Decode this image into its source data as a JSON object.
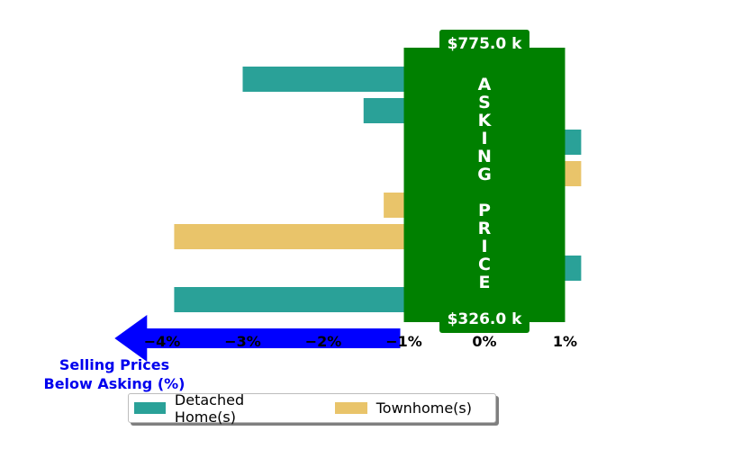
{
  "chart_data": {
    "type": "bar",
    "orientation": "horizontal",
    "xlim": [
      -4.6,
      1.3
    ],
    "x_ticks": [
      -4,
      -3,
      -2,
      -1,
      0,
      1
    ],
    "x_tick_labels": [
      "−4%",
      "−3%",
      "−2%",
      "−1%",
      "0%",
      "1%"
    ],
    "grid": false,
    "legend_position": "bottom-center",
    "colors": {
      "detached": "#2aa198",
      "townhome": "#e9c46a",
      "asking_box": "#008000",
      "arrow": "#0000ff",
      "below_label": "#0000ee"
    },
    "series": [
      {
        "name": "Detached Home(s)",
        "key": "detached"
      },
      {
        "name": "Townhome(s)",
        "key": "townhome"
      }
    ],
    "bars": [
      {
        "series": "detached",
        "value": -3.0
      },
      {
        "series": "detached",
        "value": -1.5
      },
      {
        "series": "detached",
        "value": 1.2
      },
      {
        "series": "townhome",
        "value": 1.2
      },
      {
        "series": "townhome",
        "value": -1.25
      },
      {
        "series": "townhome",
        "value": -3.85
      },
      {
        "series": "detached",
        "value": 1.2
      },
      {
        "series": "detached",
        "value": -3.85
      }
    ],
    "asking_price_box": {
      "x_range": [
        -1,
        1
      ],
      "letters": [
        "A",
        "S",
        "K",
        "I",
        "N",
        "G",
        "",
        "P",
        "R",
        "I",
        "C",
        "E"
      ],
      "top_price": "$775.0 k",
      "bottom_price": "$326.0 k"
    },
    "below_asking_label": [
      "Selling Prices",
      "Below Asking (%)"
    ]
  }
}
